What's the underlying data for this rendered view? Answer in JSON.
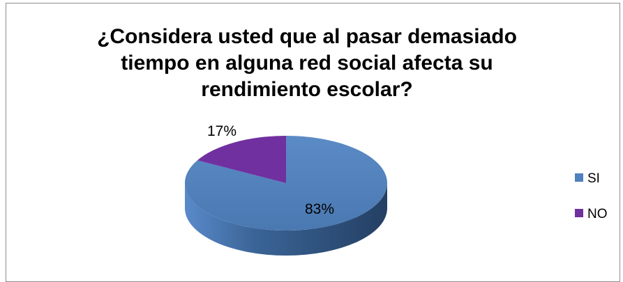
{
  "chart_data": {
    "type": "pie",
    "title_lines": [
      "¿Considera usted que al pasar demasiado",
      "tiempo en alguna red social afecta su",
      "rendimiento escolar?"
    ],
    "categories": [
      "SI",
      "NO"
    ],
    "values": [
      83,
      17
    ],
    "labels": [
      "83%",
      "17%"
    ],
    "colors": [
      "#4F81BD",
      "#7030A0"
    ],
    "legend_position": "right",
    "style": "3d"
  }
}
